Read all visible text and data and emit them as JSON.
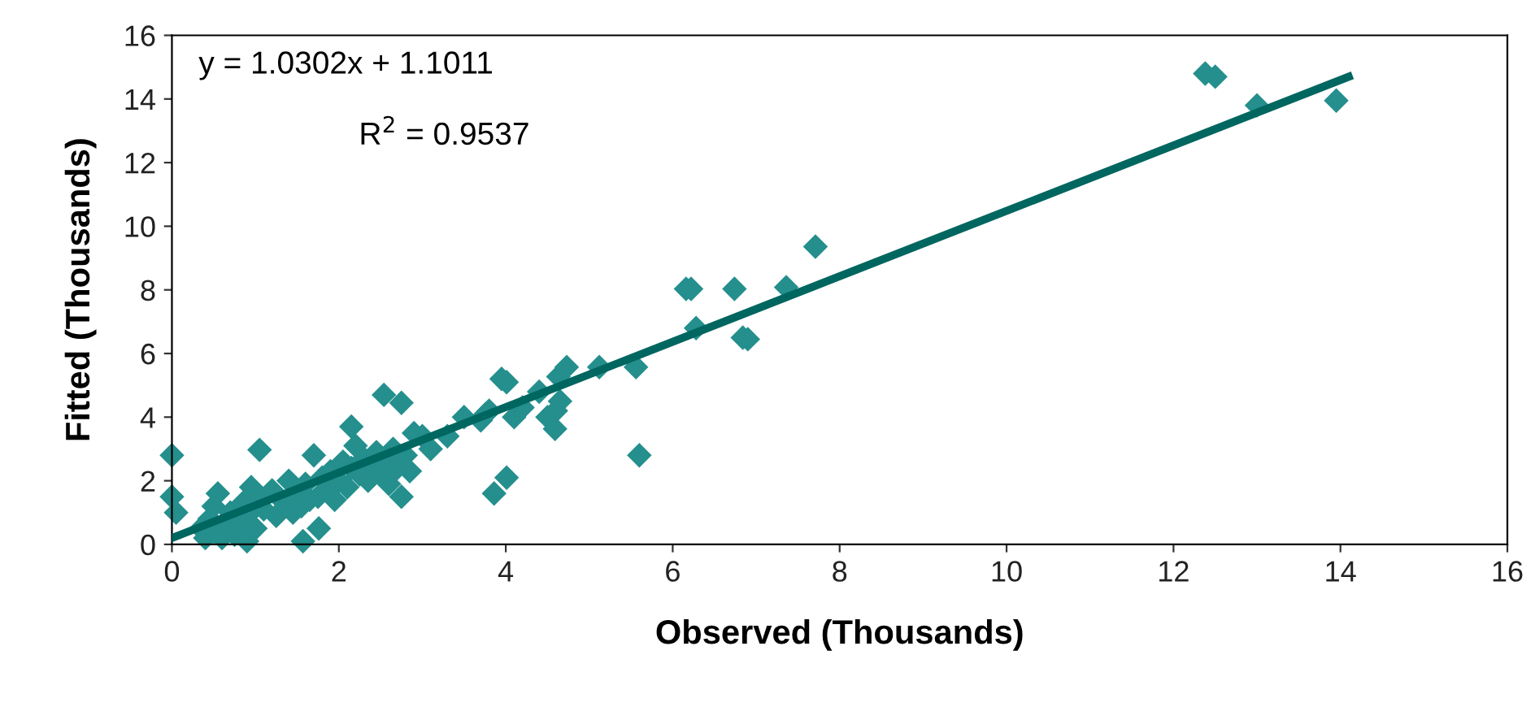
{
  "chart_data": {
    "type": "scatter",
    "xlabel": "Observed (Thousands)",
    "ylabel": "Fitted (Thousands)",
    "xlim": [
      0,
      16
    ],
    "ylim": [
      0,
      16
    ],
    "xticks": [
      0,
      2,
      4,
      6,
      8,
      10,
      12,
      14,
      16
    ],
    "yticks": [
      0,
      2,
      4,
      6,
      8,
      10,
      12,
      14,
      16
    ],
    "grid": false,
    "marker": "diamond",
    "annotations": [
      "y = 1.0302x + 1.1011",
      "R$^{2}$ = 0.9537"
    ],
    "series": [
      {
        "color": "#248f8d",
        "x": [
          0,
          0,
          0.05,
          0.35,
          0.4,
          0.45,
          0.5,
          0.5,
          0.55,
          0.6,
          0.65,
          0.7,
          0.75,
          0.8,
          0.85,
          0.9,
          0.9,
          0.95,
          1.0,
          1.05,
          1.05,
          1.1,
          1.2,
          1.25,
          1.35,
          1.4,
          1.45,
          1.5,
          1.55,
          1.57,
          1.6,
          1.65,
          1.7,
          1.75,
          1.76,
          1.8,
          1.85,
          1.9,
          1.95,
          2.0,
          2.05,
          2.1,
          2.15,
          2.15,
          2.2,
          2.25,
          2.3,
          2.35,
          2.4,
          2.45,
          2.5,
          2.54,
          2.55,
          2.6,
          2.65,
          2.7,
          2.75,
          2.75,
          2.8,
          2.85,
          2.9,
          3.0,
          3.1,
          3.3,
          3.5,
          3.7,
          3.76,
          3.8,
          3.86,
          3.95,
          4.01,
          4.01,
          4.1,
          4.2,
          4.4,
          4.5,
          4.59,
          4.6,
          4.63,
          4.65,
          4.73,
          5.12,
          5.56,
          5.6,
          6.16,
          6.22,
          6.28,
          6.74,
          6.84,
          6.9,
          7.36,
          7.71,
          12.38,
          12.5,
          13.0,
          13.95
        ],
        "values": [
          1.5,
          2.8,
          1.0,
          0.5,
          0.2,
          0.8,
          1.2,
          0.4,
          1.6,
          0.2,
          0.7,
          1.0,
          0.3,
          0.6,
          1.3,
          0.1,
          0.9,
          1.8,
          0.5,
          1.4,
          2.97,
          1.1,
          1.7,
          0.9,
          1.3,
          2.0,
          1.0,
          1.6,
          1.2,
          0.1,
          1.9,
          1.4,
          2.8,
          1.5,
          0.5,
          2.1,
          1.7,
          2.3,
          1.4,
          2.0,
          2.6,
          1.8,
          2.4,
          3.7,
          3.1,
          2.2,
          2.7,
          2.0,
          2.5,
          2.9,
          2.3,
          4.7,
          2.7,
          1.9,
          3.0,
          2.4,
          1.5,
          4.45,
          2.8,
          2.3,
          3.5,
          3.4,
          3.0,
          3.4,
          4.0,
          3.9,
          4.1,
          4.2,
          1.6,
          5.2,
          5.1,
          2.1,
          4.0,
          4.3,
          4.8,
          4.0,
          3.63,
          4.2,
          5.27,
          4.5,
          5.57,
          5.57,
          5.57,
          2.8,
          8.03,
          8.03,
          6.8,
          8.03,
          6.5,
          6.45,
          8.08,
          9.36,
          14.8,
          14.7,
          13.8,
          13.95
        ]
      },
      {
        "type": "line",
        "color": "#006660",
        "x": [
          0,
          14.1
        ],
        "values": [
          0.2,
          14.7
        ],
        "line_style": "solid",
        "marker": "none"
      }
    ]
  }
}
